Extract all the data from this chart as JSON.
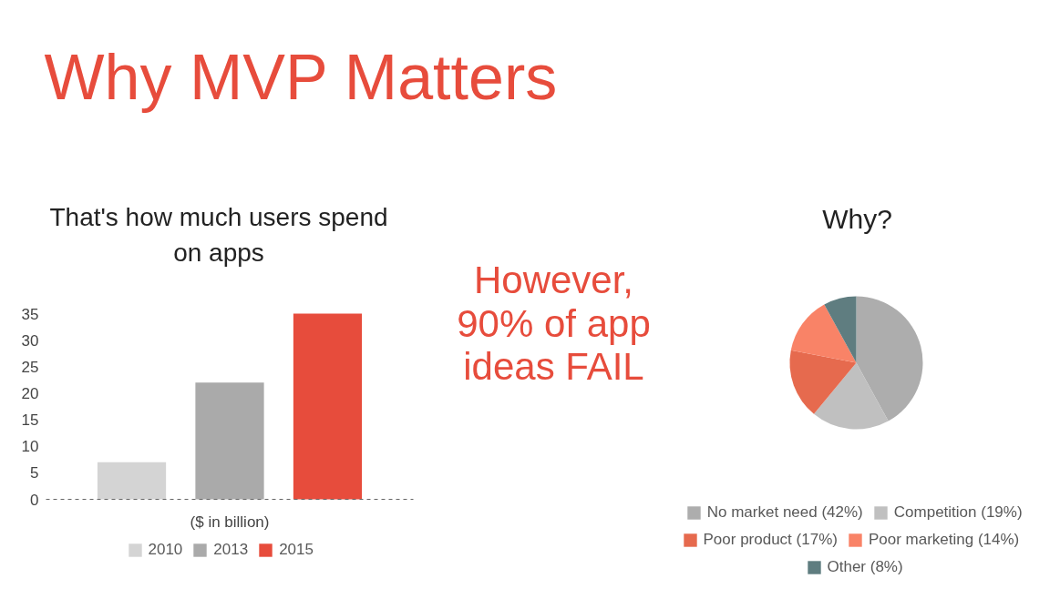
{
  "chart_data": [
    {
      "type": "other",
      "title": "Why MVP Matters"
    },
    {
      "type": "bar",
      "title": "That's how much users spend on apps",
      "xlabel": "($ in billion)",
      "categories": [
        null
      ],
      "series": [
        {
          "name": "2010",
          "color": "#d4d4d4",
          "values": [
            7
          ]
        },
        {
          "name": "2013",
          "color": "#aaaaaa",
          "values": [
            22
          ]
        },
        {
          "name": "2015",
          "color": "#e74c3c",
          "values": [
            35
          ]
        }
      ],
      "ylim": [
        0,
        35
      ],
      "yticks": [
        0,
        5,
        10,
        15,
        20,
        25,
        30,
        35
      ],
      "legend": "bottom"
    },
    {
      "type": "other",
      "annotations": [
        "However, 90% of app ideas FAIL"
      ]
    },
    {
      "type": "pie",
      "title": "Why?",
      "categories": [
        "No market need (42%)",
        "Competition (19%)",
        "Poor product (17%)",
        "Poor marketing (14%)",
        "Other (8%)"
      ],
      "values": [
        42,
        19,
        17,
        14,
        8
      ],
      "colors": [
        "#adadad",
        "#c0c0c0",
        "#e66a4e",
        "#f98367",
        "#5f7d80"
      ],
      "legend": "bottom"
    }
  ]
}
